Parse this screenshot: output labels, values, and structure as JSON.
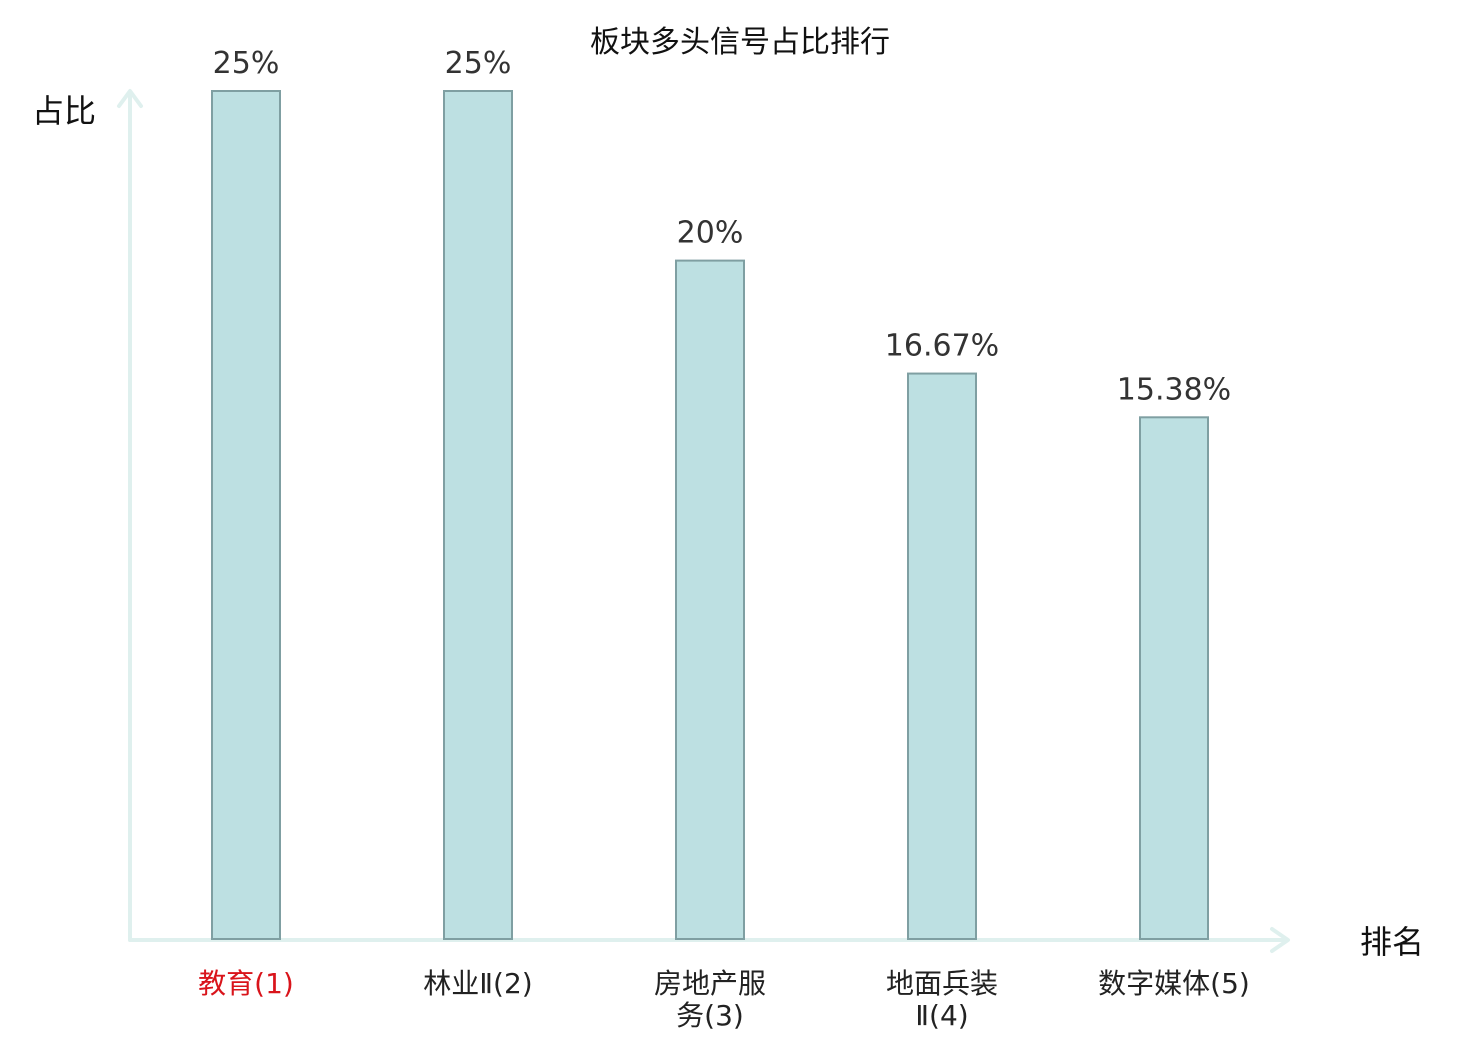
{
  "chart_data": {
    "type": "bar",
    "title": "板块多头信号占比排行",
    "ylabel": "占比",
    "xlabel": "排名",
    "categories": [
      [
        "教育(1)"
      ],
      [
        "林业Ⅱ(2)"
      ],
      [
        "房地产服",
        "务(3)"
      ],
      [
        "地面兵装",
        "Ⅱ(4)"
      ],
      [
        "数字媒体(5)"
      ]
    ],
    "values": [
      25,
      25,
      20,
      16.67,
      15.38
    ],
    "value_labels": [
      "25%",
      "25%",
      "20%",
      "16.67%",
      "15.38%"
    ],
    "highlight_index": 0,
    "ylim": [
      0,
      25
    ],
    "grid": false,
    "colors": {
      "bar_fill": "#bde0e2",
      "bar_stroke": "#7f9fa2",
      "axis": "#dff0ee",
      "highlight_text": "#d9141b"
    }
  }
}
